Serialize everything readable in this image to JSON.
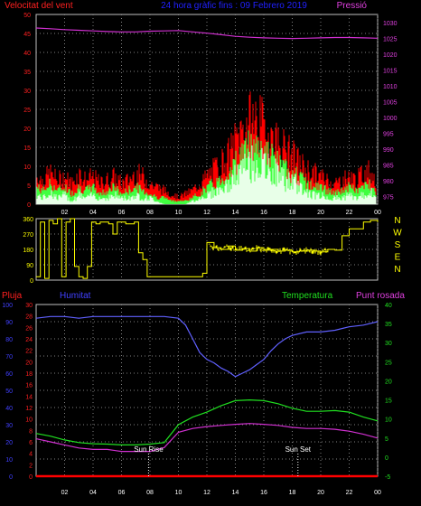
{
  "header": {
    "left_title": "Velocitat del vent",
    "center_title": "24 hora gràfic fins : 09 Febrero 2019",
    "right_title": "Pressió"
  },
  "colors": {
    "bg": "#000000",
    "frame": "#c0c0c0",
    "grid": "#808080",
    "axis_red": "#ff2020",
    "axis_magenta": "#e040e0",
    "axis_blue": "#4040ff",
    "axis_yellow": "#ffff00",
    "axis_green": "#20e020",
    "wind_gust": "#ff0000",
    "wind_avg": "#40ff40",
    "wind_min": "#e8ffe8",
    "pressure": "#d030d0",
    "direction": "#ffff00",
    "humidity": "#6060ff",
    "temperature": "#20e020",
    "dewpoint": "#d030d0",
    "rain": "#ff0000",
    "marker": "#ffffff",
    "center_title": "#2020ff"
  },
  "x_ticks": [
    "02",
    "04",
    "06",
    "08",
    "10",
    "12",
    "14",
    "16",
    "18",
    "20",
    "22",
    "00"
  ],
  "chart_data": [
    {
      "type": "line",
      "title": "24 hora gràfic fins : 09 Febrero 2019",
      "left_axis": {
        "label": "Velocitat del vent",
        "ticks": [
          0,
          5,
          10,
          15,
          20,
          25,
          30,
          35,
          40,
          45,
          50
        ],
        "ylim": [
          0,
          50
        ]
      },
      "right_axis": {
        "label": "Pressió",
        "ticks": [
          975,
          980,
          985,
          990,
          995,
          1000,
          1005,
          1010,
          1015,
          1020,
          1025,
          1030
        ],
        "ylim": [
          972.5,
          1032.5
        ]
      },
      "x_ticks": [
        "02",
        "04",
        "06",
        "08",
        "10",
        "12",
        "14",
        "16",
        "18",
        "20",
        "22",
        "00"
      ],
      "series": [
        {
          "name": "Velocitat del vent",
          "gust_envelope": {
            "x": [
              0,
              0.5,
              1,
              1.5,
              2,
              2.5,
              3,
              3.5,
              4,
              4.5,
              5,
              5.5,
              6,
              6.5,
              7,
              7.5,
              8,
              8.5,
              9,
              9.5,
              10,
              10.5,
              11,
              11.5,
              12,
              12.5,
              13,
              13.5,
              14,
              14.5,
              15,
              15.5,
              16,
              16.5,
              17,
              17.5,
              18,
              18.5,
              19,
              19.5,
              20,
              20.5,
              21,
              21.5,
              22,
              22.5,
              23,
              23.5,
              24
            ],
            "y": [
              8,
              7,
              9,
              7,
              8,
              6,
              9,
              7,
              8,
              6,
              7,
              8,
              6,
              7,
              9,
              8,
              6,
              5,
              4,
              3,
              2,
              3,
              4,
              6,
              8,
              10,
              12,
              14,
              18,
              22,
              24,
              25,
              22,
              20,
              18,
              16,
              14,
              12,
              10,
              9,
              8,
              7,
              6,
              7,
              8,
              7,
              9,
              10,
              6
            ]
          },
          "avg_envelope": {
            "x": [
              0,
              0.5,
              1,
              1.5,
              2,
              2.5,
              3,
              3.5,
              4,
              4.5,
              5,
              5.5,
              6,
              6.5,
              7,
              7.5,
              8,
              8.5,
              9,
              9.5,
              10,
              10.5,
              11,
              11.5,
              12,
              12.5,
              13,
              13.5,
              14,
              14.5,
              15,
              15.5,
              16,
              16.5,
              17,
              17.5,
              18,
              18.5,
              19,
              19.5,
              20,
              20.5,
              21,
              21.5,
              22,
              22.5,
              23,
              23.5,
              24
            ],
            "y": [
              5,
              4,
              6,
              4,
              5,
              3,
              5,
              4,
              5,
              3,
              4,
              5,
              3,
              4,
              5,
              4,
              3,
              2,
              2,
              1,
              1,
              1,
              2,
              3,
              5,
              6,
              7,
              9,
              12,
              15,
              17,
              18,
              15,
              14,
              12,
              10,
              9,
              8,
              6,
              5,
              5,
              4,
              3,
              4,
              5,
              4,
              5,
              6,
              3
            ]
          },
          "min_envelope": {
            "x": [
              0,
              0.5,
              1,
              1.5,
              2,
              2.5,
              3,
              3.5,
              4,
              4.5,
              5,
              5.5,
              6,
              6.5,
              7,
              7.5,
              8,
              8.5,
              9,
              9.5,
              10,
              10.5,
              11,
              11.5,
              12,
              12.5,
              13,
              13.5,
              14,
              14.5,
              15,
              15.5,
              16,
              16.5,
              17,
              17.5,
              18,
              18.5,
              19,
              19.5,
              20,
              20.5,
              21,
              21.5,
              22,
              22.5,
              23,
              23.5,
              24
            ],
            "y": [
              3,
              2,
              4,
              2,
              3,
              1,
              3,
              2,
              3,
              2,
              2,
              3,
              2,
              2,
              3,
              2,
              2,
              1,
              0,
              0,
              0,
              0,
              1,
              2,
              3,
              4,
              5,
              6,
              9,
              11,
              13,
              14,
              12,
              11,
              10,
              8,
              7,
              6,
              4,
              3,
              3,
              2,
              2,
              2,
              3,
              2,
              3,
              4,
              1
            ]
          }
        },
        {
          "name": "Pressió",
          "x": [
            0,
            1,
            2,
            3,
            4,
            5,
            6,
            7,
            8,
            9,
            10,
            11,
            12,
            13,
            14,
            15,
            16,
            17,
            18,
            19,
            20,
            21,
            22,
            23,
            24
          ],
          "y": [
            1028.2,
            1028.0,
            1027.7,
            1027.5,
            1027.3,
            1027.1,
            1027.0,
            1027.0,
            1027.2,
            1027.3,
            1027.4,
            1027.0,
            1026.6,
            1026.1,
            1025.6,
            1025.3,
            1025.1,
            1025.0,
            1024.9,
            1025.0,
            1025.1,
            1025.2,
            1025.2,
            1025.1,
            1025.0
          ]
        }
      ]
    },
    {
      "type": "line",
      "right_labels": [
        "N",
        "W",
        "S",
        "E",
        "N"
      ],
      "left_axis": {
        "ticks": [
          0,
          90,
          180,
          270,
          360
        ],
        "ylim": [
          0,
          360
        ]
      },
      "series": [
        {
          "name": "Direcció",
          "x": [
            0,
            0.3,
            0.6,
            0.9,
            1.2,
            1.5,
            1.8,
            2.1,
            2.4,
            2.7,
            3.0,
            3.3,
            3.6,
            3.9,
            4.2,
            4.5,
            4.8,
            5.1,
            5.4,
            5.7,
            6.0,
            6.3,
            6.6,
            6.9,
            7.2,
            7.5,
            7.8,
            8.1,
            8.4,
            8.7,
            9.0,
            9.3,
            9.6,
            9.9,
            10.2,
            10.5,
            10.8,
            11.1,
            11.4,
            11.7,
            12.0,
            12.5,
            13,
            13.5,
            14,
            14.5,
            15,
            15.5,
            16,
            16.5,
            17,
            17.5,
            18,
            18.5,
            19,
            19.5,
            20,
            20.5,
            21,
            21.5,
            22,
            22.5,
            23,
            23.5,
            24
          ],
          "y": [
            20,
            340,
            10,
            350,
            330,
            360,
            20,
            340,
            360,
            80,
            20,
            10,
            80,
            340,
            330,
            340,
            340,
            330,
            270,
            340,
            340,
            330,
            330,
            340,
            160,
            120,
            20,
            20,
            20,
            20,
            20,
            20,
            20,
            20,
            20,
            20,
            20,
            20,
            20,
            40,
            220,
            190,
            180,
            200,
            175,
            185,
            170,
            190,
            175,
            180,
            170,
            175,
            165,
            170,
            175,
            170,
            165,
            180,
            175,
            260,
            300,
            300,
            340,
            350,
            340
          ]
        }
      ]
    },
    {
      "type": "line",
      "left_axes": [
        {
          "label": "Pluja",
          "ticks": [
            0,
            2,
            4,
            6,
            8,
            10,
            12,
            14,
            16,
            18,
            20,
            22,
            24,
            26,
            28,
            30
          ],
          "ylim": [
            0,
            30
          ]
        },
        {
          "label": "Humitat",
          "ticks": [
            0,
            10,
            20,
            30,
            40,
            50,
            60,
            70,
            80,
            90,
            100
          ],
          "ylim": [
            0,
            100
          ]
        }
      ],
      "right_axis": {
        "label": "Temperatura",
        "ticks": [
          -5,
          0,
          5,
          10,
          15,
          20,
          25,
          30,
          35,
          40
        ],
        "ylim": [
          -5,
          40
        ]
      },
      "labels": {
        "rain": "Pluja",
        "humidity": "Humitat",
        "temperature": "Temperatura",
        "dewpoint": "Punt rosada"
      },
      "annotations": [
        {
          "text": "Sun Rise",
          "x": 7.9
        },
        {
          "text": "Sun Set",
          "x": 18.4
        }
      ],
      "series": [
        {
          "name": "Humitat",
          "x": [
            0,
            1,
            2,
            3,
            4,
            5,
            6,
            7,
            8,
            9,
            10,
            10.5,
            11,
            11.5,
            12,
            12.5,
            13,
            13.5,
            14,
            14.5,
            15,
            15.5,
            16,
            16.5,
            17,
            17.5,
            18,
            19,
            20,
            21,
            22,
            23,
            24
          ],
          "y": [
            92,
            93,
            93,
            92,
            93,
            93,
            93,
            93,
            93,
            93,
            92,
            88,
            80,
            72,
            68,
            66,
            63,
            61,
            58,
            60,
            62,
            65,
            68,
            73,
            77,
            80,
            82,
            84,
            84,
            85,
            87,
            88,
            90
          ]
        },
        {
          "name": "Temperatura",
          "x": [
            0,
            1,
            2,
            3,
            4,
            5,
            6,
            7,
            8,
            9,
            10,
            11,
            12,
            13,
            14,
            15,
            16,
            17,
            18,
            19,
            20,
            21,
            22,
            23,
            24
          ],
          "y": [
            6.2,
            5.5,
            4.5,
            3.8,
            3.5,
            3.4,
            3.2,
            3.2,
            3.4,
            3.8,
            8.5,
            10.5,
            11.8,
            13.5,
            14.8,
            15,
            14.8,
            14,
            12.8,
            12,
            12,
            12.2,
            11.8,
            10.5,
            9.5
          ]
        },
        {
          "name": "Punt rosada",
          "x": [
            0,
            1,
            2,
            3,
            4,
            5,
            6,
            7,
            8,
            9,
            10,
            11,
            12,
            13,
            14,
            15,
            16,
            17,
            18,
            19,
            20,
            21,
            22,
            23,
            24
          ],
          "y": [
            4.8,
            4.0,
            3.2,
            2.4,
            2.0,
            2.0,
            1.5,
            1.5,
            1.5,
            2.5,
            6.5,
            7.5,
            8.0,
            8.3,
            8.6,
            8.8,
            8.6,
            8.3,
            7.8,
            7.5,
            7.5,
            7.3,
            6.8,
            6.0,
            5.0
          ]
        },
        {
          "name": "Pluja",
          "x": [
            0,
            24
          ],
          "y": [
            0,
            0
          ]
        }
      ]
    }
  ]
}
